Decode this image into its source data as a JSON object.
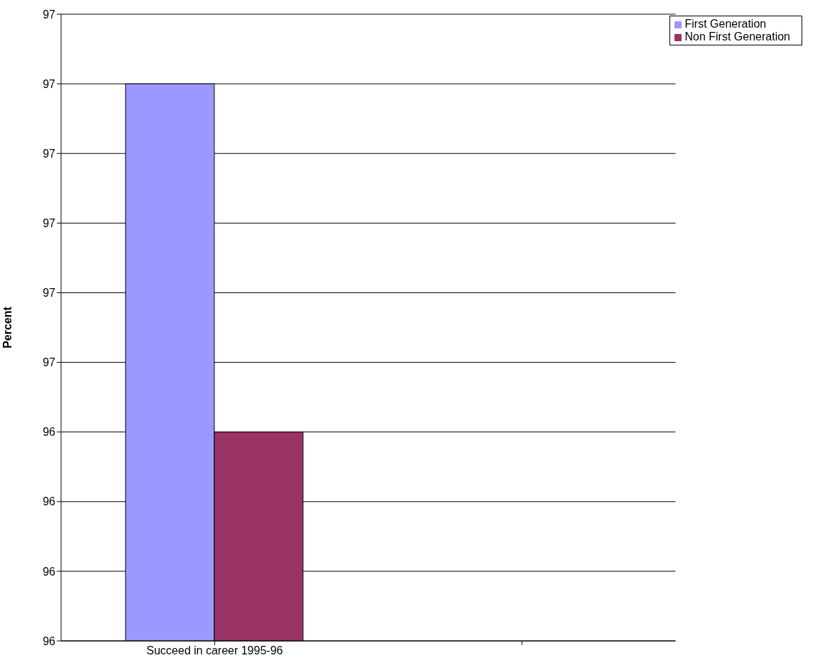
{
  "chart_data": {
    "type": "bar",
    "ylabel": "Percent",
    "categories": [
      "Succeed in career 1995-96",
      null
    ],
    "series": [
      {
        "name": "First Generation",
        "color": "#9999ff",
        "values": [
          96.9,
          null
        ]
      },
      {
        "name": "Non First Generation",
        "color": "#993366",
        "values": [
          96.4,
          null
        ]
      }
    ],
    "ylim": [
      96.1,
      97.0
    ],
    "yticks": [
      {
        "value": 96.1,
        "label": "96"
      },
      {
        "value": 96.2,
        "label": "96"
      },
      {
        "value": 96.3,
        "label": "96"
      },
      {
        "value": 96.4,
        "label": "96"
      },
      {
        "value": 96.5,
        "label": "97"
      },
      {
        "value": 96.6,
        "label": "97"
      },
      {
        "value": 96.7,
        "label": "97"
      },
      {
        "value": 96.8,
        "label": "97"
      },
      {
        "value": 96.9,
        "label": "97"
      },
      {
        "value": 97.0,
        "label": "97"
      }
    ],
    "grid": "y",
    "legend": "top right"
  }
}
